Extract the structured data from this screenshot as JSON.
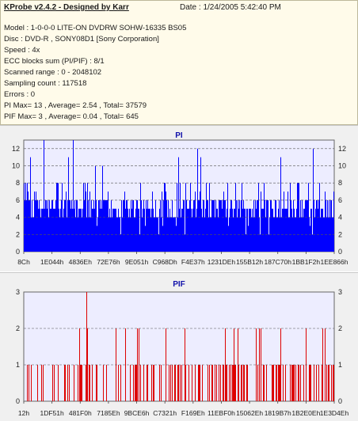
{
  "info": {
    "title": "KProbe v2.4.2 - Designed by Karr",
    "date": "Date : 1/24/2005 5:42:40 PM",
    "lines": [
      "Model : 1-0-0-0 LITE-ON DVDRW SOHW-16335 BS05",
      "Disc : DVD-R , SONY08D1 [Sony Corporation]",
      "Speed : 4x",
      "ECC blocks sum (PI/PIF) : 8/1",
      "Scanned range : 0 - 2048102",
      "Sampling count : 117518",
      "Errors : 0",
      "PI Max= 13 , Average= 2.54 , Total= 37579",
      "PIF Max= 3 , Average= 0.04 , Total= 645"
    ]
  },
  "colors": {
    "pi_bar": "#0000ff",
    "pif_bar": "#dd0000",
    "plot_bg": "#ededff",
    "grid": "#555555"
  },
  "chart_data": [
    {
      "type": "bar",
      "title": "PI",
      "ylim": [
        0,
        13
      ],
      "yticks": [
        0,
        2,
        4,
        6,
        8,
        10,
        12
      ],
      "xticks": [
        "8Ch",
        "1E044h",
        "4836Eh",
        "72E76h",
        "9E051h",
        "C968Dh",
        "F4E37h",
        "1231DEh",
        "155B12h",
        "187C70h",
        "1BB1F2h",
        "1EE866h"
      ],
      "grid": true,
      "summary": {
        "max": 13,
        "average": 2.54,
        "total": 37579
      }
    },
    {
      "type": "bar",
      "title": "PIF",
      "ylim": [
        0,
        3
      ],
      "yticks": [
        0,
        1,
        2,
        3
      ],
      "xticks": [
        "12h",
        "1DF51h",
        "481F0h",
        "7185Eh",
        "9BCE6h",
        "C7321h",
        "F169Eh",
        "11EBF0h",
        "15062Eh",
        "1819B7h",
        "1B2E0Eh",
        "1E3D4Eh"
      ],
      "grid": true,
      "summary": {
        "max": 3,
        "average": 0.04,
        "total": 645
      }
    }
  ]
}
